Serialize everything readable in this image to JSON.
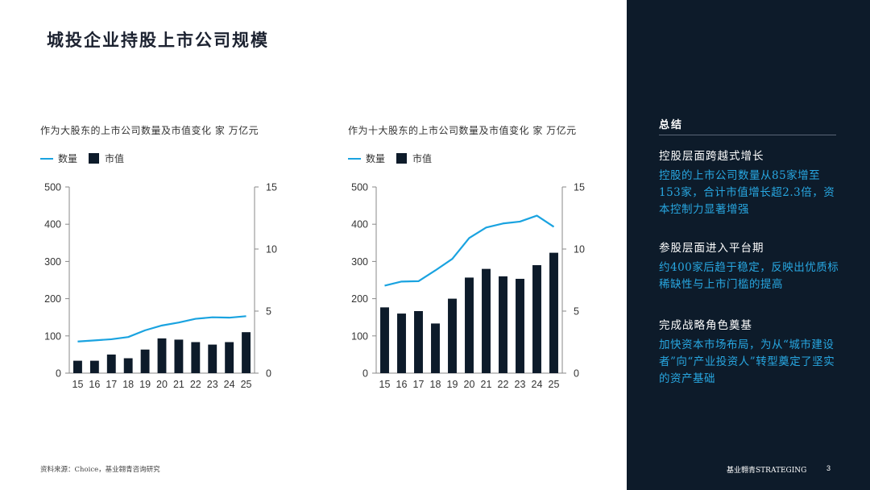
{
  "page": {
    "title": "城投企业持股上市公司规模",
    "source": "资料来源：Choice，基业翱青咨询研究",
    "brand": "基业翱青STRATEGING",
    "page_number": "3"
  },
  "colors": {
    "line": "#1aa3e0",
    "bar": "#0d1b2a",
    "sidebar_bg": "#0d1b2a",
    "accent_text": "#28a7e1"
  },
  "legend": {
    "line_label": "数量",
    "bar_label": "市值"
  },
  "chart_data": [
    {
      "type": "bar+line",
      "title": "作为大股东的上市公司数量及市值变化 家 万亿元",
      "categories": [
        "15",
        "16",
        "17",
        "18",
        "19",
        "20",
        "21",
        "22",
        "23",
        "24",
        "25"
      ],
      "series": [
        {
          "name": "数量",
          "type": "line",
          "axis": "left",
          "values": [
            85,
            88,
            91,
            97,
            115,
            128,
            136,
            146,
            150,
            149,
            153
          ]
        },
        {
          "name": "市值",
          "type": "bar",
          "axis": "right",
          "values": [
            1.0,
            1.0,
            1.5,
            1.2,
            1.9,
            2.8,
            2.7,
            2.5,
            2.3,
            2.5,
            3.3
          ]
        }
      ],
      "yleft": {
        "min": 0,
        "max": 500,
        "ticks": [
          0,
          100,
          200,
          300,
          400,
          500
        ]
      },
      "yright": {
        "min": 0,
        "max": 15,
        "ticks": [
          0,
          5,
          10,
          15
        ]
      }
    },
    {
      "type": "bar+line",
      "title": "作为十大股东的上市公司数量及市值变化 家 万亿元",
      "categories": [
        "15",
        "16",
        "17",
        "18",
        "19",
        "20",
        "21",
        "22",
        "23",
        "24",
        "25"
      ],
      "series": [
        {
          "name": "数量",
          "type": "line",
          "axis": "left",
          "values": [
            235,
            246,
            247,
            276,
            307,
            363,
            391,
            402,
            407,
            423,
            393
          ]
        },
        {
          "name": "市值",
          "type": "bar",
          "axis": "right",
          "values": [
            5.3,
            4.8,
            5.0,
            4.0,
            6.0,
            7.7,
            8.4,
            7.8,
            7.6,
            8.7,
            9.7
          ]
        }
      ],
      "yleft": {
        "min": 0,
        "max": 500,
        "ticks": [
          0,
          100,
          200,
          300,
          400,
          500
        ]
      },
      "yright": {
        "min": 0,
        "max": 15,
        "ticks": [
          0,
          5,
          10,
          15
        ]
      }
    }
  ],
  "summary": {
    "heading": "总结",
    "points": [
      {
        "title": "控股层面跨越式增长",
        "body": "控股的上市公司数量从85家增至153家，合计市值增长超2.3倍，资本控制力显著增强"
      },
      {
        "title": "参股层面进入平台期",
        "body": "约400家后趋于稳定，反映出优质标稀缺性与上市门槛的提高"
      },
      {
        "title": "完成战略角色奠基",
        "body": "加快资本市场布局，为从“城市建设者”向“产业投资人”转型奠定了坚实的资产基础"
      }
    ]
  }
}
